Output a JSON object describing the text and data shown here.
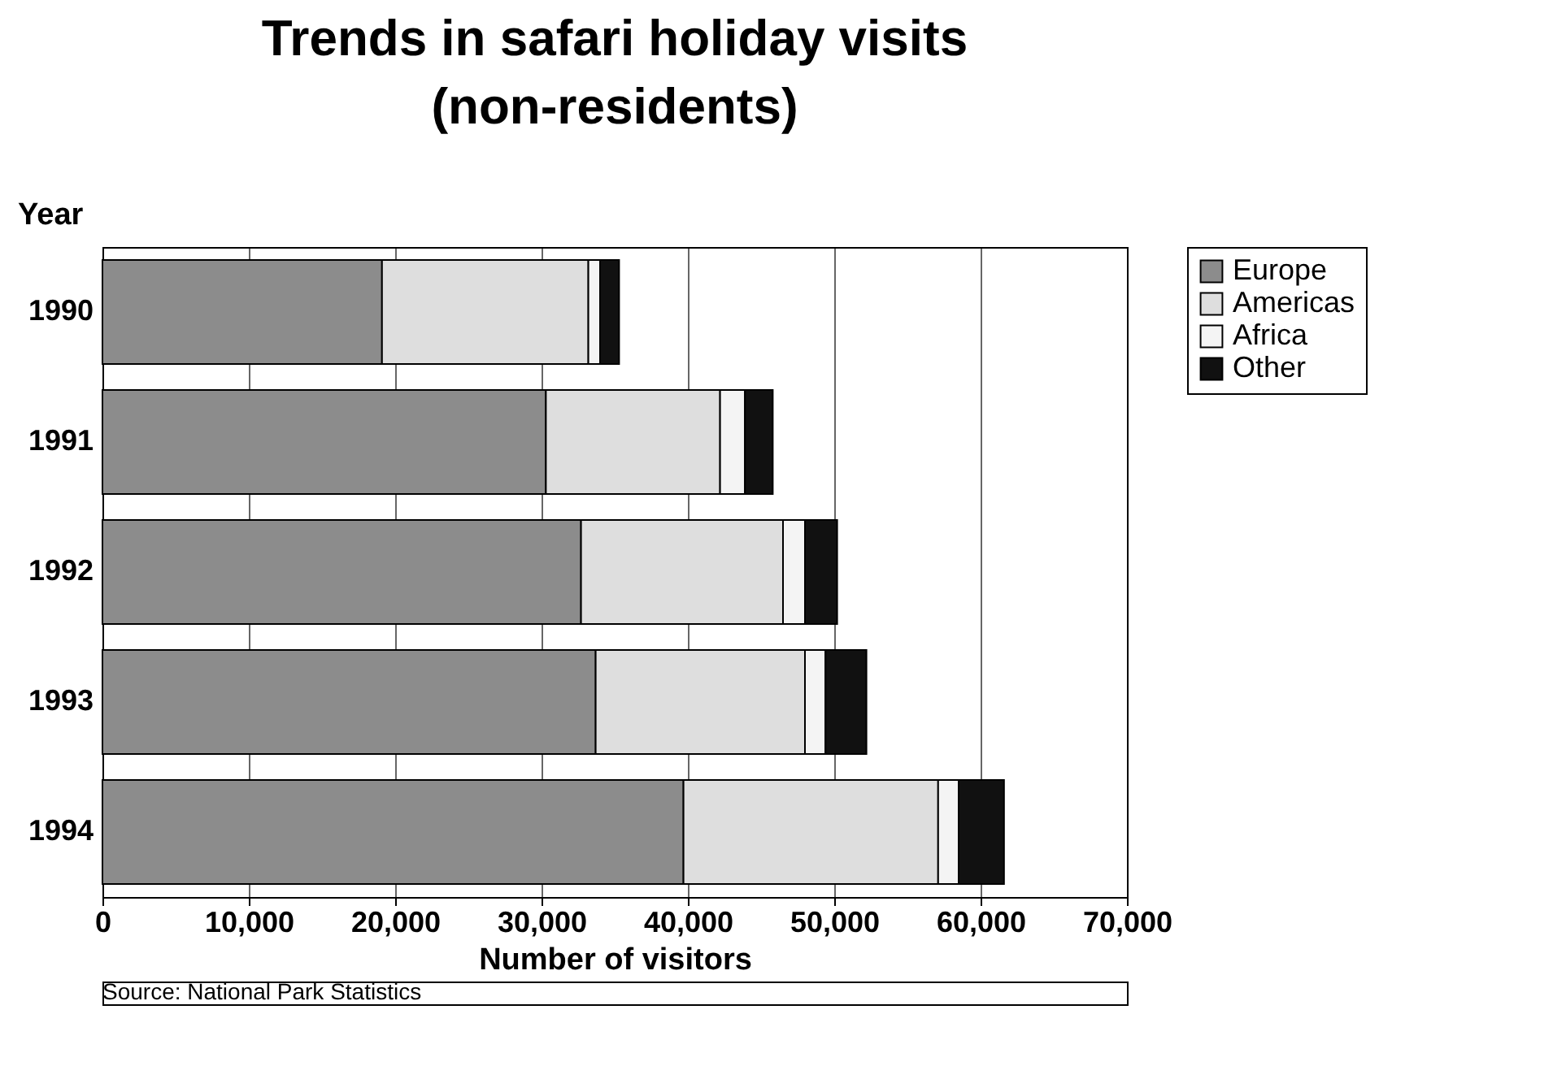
{
  "chart_data": {
    "type": "bar",
    "orientation": "horizontal",
    "stacked": true,
    "title": [
      "Trends in safari holiday visits",
      "(non-residents)"
    ],
    "ylabel": "Year",
    "xlabel": "Number of visitors",
    "categories": [
      "1990",
      "1991",
      "1992",
      "1993",
      "1994"
    ],
    "series": [
      {
        "name": "Europe",
        "color": "#8c8c8c",
        "values": [
          19100,
          30300,
          32700,
          33700,
          39700
        ]
      },
      {
        "name": "Americas",
        "color": "#dedede",
        "values": [
          14100,
          11900,
          13800,
          14300,
          17400
        ]
      },
      {
        "name": "Africa",
        "color": "#f4f4f4",
        "values": [
          800,
          1700,
          1500,
          1400,
          1400
        ]
      },
      {
        "name": "Other",
        "color": "#111111",
        "values": [
          1300,
          1900,
          2200,
          2800,
          3100
        ]
      }
    ],
    "xlim": [
      0,
      70000
    ],
    "xticks": [
      {
        "value": 0,
        "label": "0"
      },
      {
        "value": 10000,
        "label": "10,000"
      },
      {
        "value": 20000,
        "label": "20,000"
      },
      {
        "value": 30000,
        "label": "30,000"
      },
      {
        "value": 40000,
        "label": "40,000"
      },
      {
        "value": 50000,
        "label": "50,000"
      },
      {
        "value": 60000,
        "label": "60,000"
      },
      {
        "value": 70000,
        "label": "70,000"
      }
    ],
    "grid": "x",
    "legend": "top right",
    "annotations": [
      "Source: National Park Statistics"
    ]
  }
}
